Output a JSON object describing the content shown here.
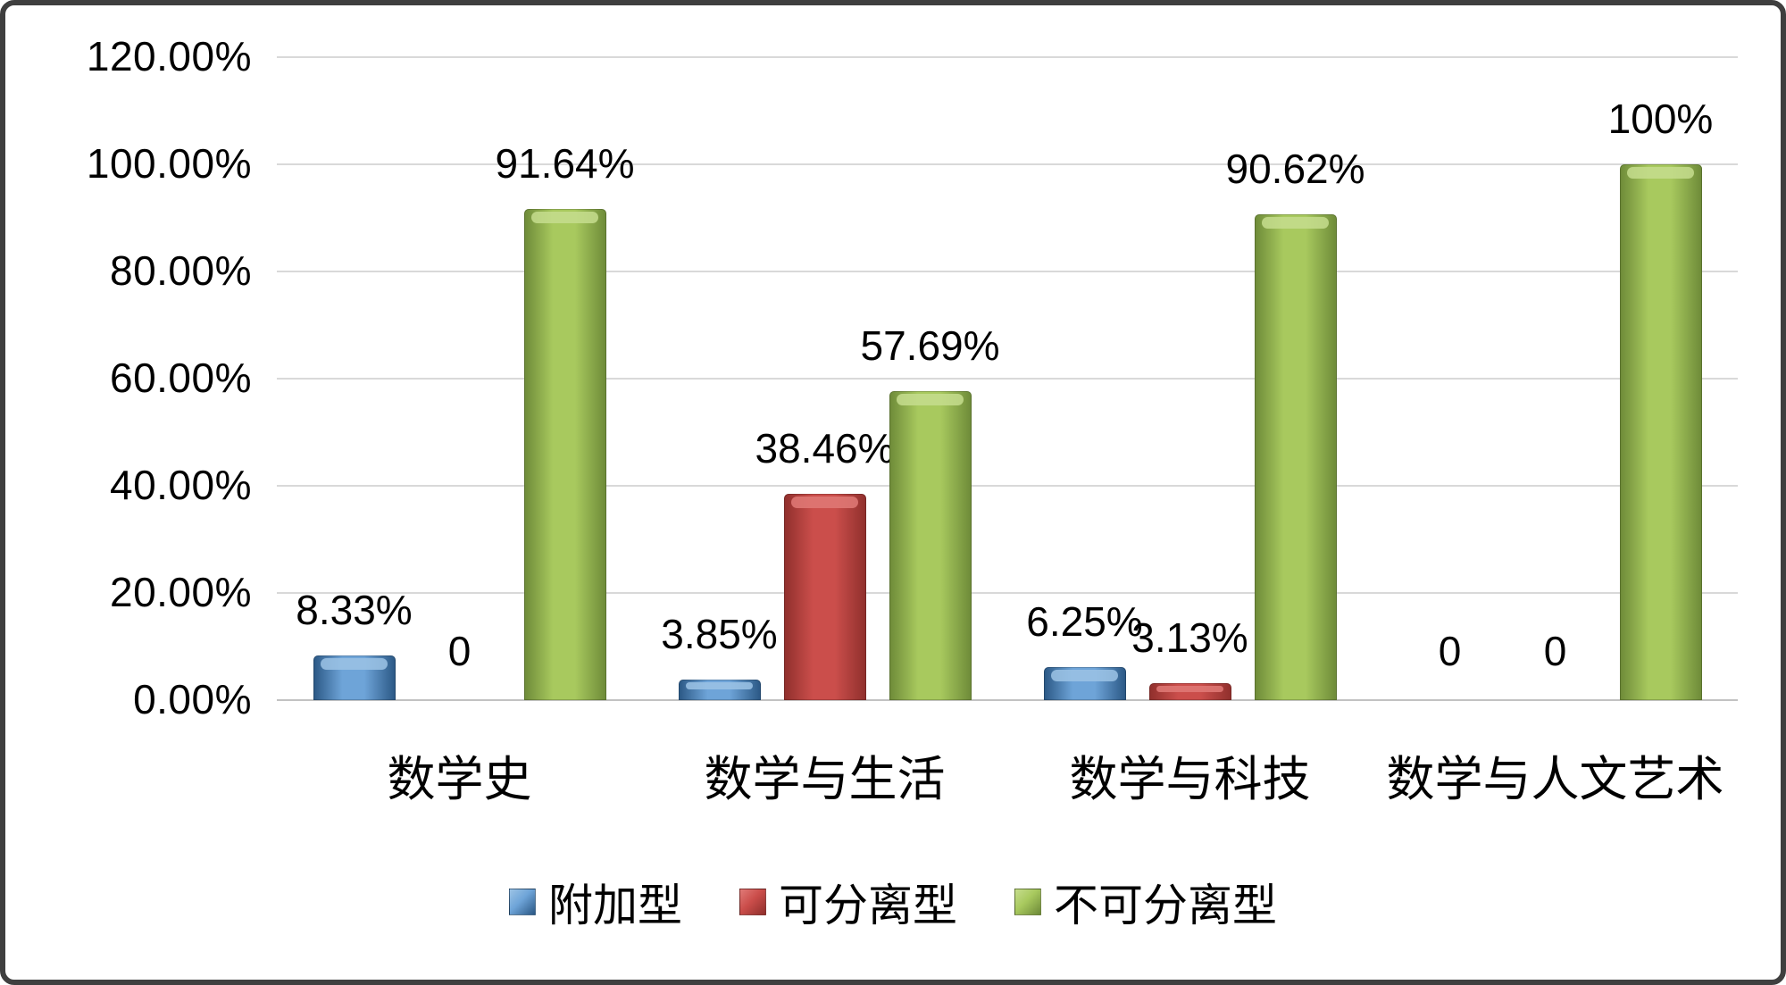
{
  "chart_data": {
    "type": "bar",
    "title": "",
    "xlabel": "",
    "ylabel": "",
    "grid": true,
    "legend_position": "bottom",
    "categories": [
      "数学史",
      "数学与生活",
      "数学与科技",
      "数学与人文艺术"
    ],
    "series": [
      {
        "name": "附加型",
        "values": [
          8.33,
          3.85,
          6.25,
          0
        ],
        "labels": [
          "8.33%",
          "3.85%",
          "6.25%",
          "0"
        ],
        "colors": {
          "dark": "#2a5784",
          "light": "#6ea4d8",
          "cap": "#9cc3e5"
        }
      },
      {
        "name": "可分离型",
        "values": [
          0,
          38.46,
          3.13,
          0
        ],
        "labels": [
          "0",
          "38.46%",
          "3.13%",
          "0"
        ],
        "colors": {
          "dark": "#8f2f2c",
          "light": "#cb4e4b",
          "cap": "#e07a77"
        }
      },
      {
        "name": "不可分离型",
        "values": [
          91.64,
          57.69,
          90.62,
          100
        ],
        "labels": [
          "91.64%",
          "57.69%",
          "90.62%",
          "100%"
        ],
        "colors": {
          "dark": "#6d8a38",
          "light": "#a8c95e",
          "cap": "#c6dd8e"
        }
      }
    ],
    "y_axis": {
      "min": 0,
      "max": 120,
      "step": 20,
      "tick_labels": [
        "0.00%",
        "20.00%",
        "40.00%",
        "60.00%",
        "80.00%",
        "100.00%",
        "120.00%"
      ]
    },
    "legend": [
      "附加型",
      "可分离型",
      "不可分离型"
    ]
  }
}
